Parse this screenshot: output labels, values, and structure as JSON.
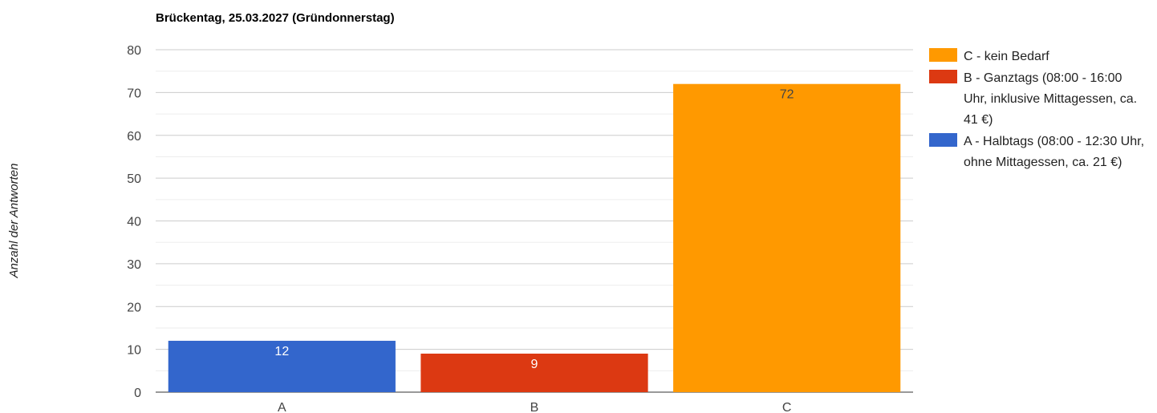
{
  "chart_data": {
    "type": "bar",
    "title": "Brückentag, 25.03.2027 (Gründonnerstag)",
    "xlabel": "",
    "ylabel": "Anzahl der Antworten",
    "ylim": [
      0,
      80
    ],
    "yticks": [
      0,
      10,
      20,
      30,
      40,
      50,
      60,
      70,
      80
    ],
    "grid": true,
    "categories": [
      "A",
      "B",
      "C"
    ],
    "values": [
      12,
      9,
      72
    ],
    "data_labels": [
      "12",
      "9",
      "72"
    ],
    "bar_colors": [
      "#3366cc",
      "#dc3912",
      "#ff9900"
    ],
    "legend_position": "right",
    "legend": [
      {
        "label": "C - kein Bedarf",
        "color": "#ff9900"
      },
      {
        "label": "B - Ganztags (08:00 - 16:00 Uhr, inklusive Mittagessen, ca. 41 €)",
        "color": "#dc3912"
      },
      {
        "label": "A - Halbtags (08:00 - 12:30 Uhr, ohne Mittagessen, ca. 21 €)",
        "color": "#3366cc"
      }
    ]
  }
}
